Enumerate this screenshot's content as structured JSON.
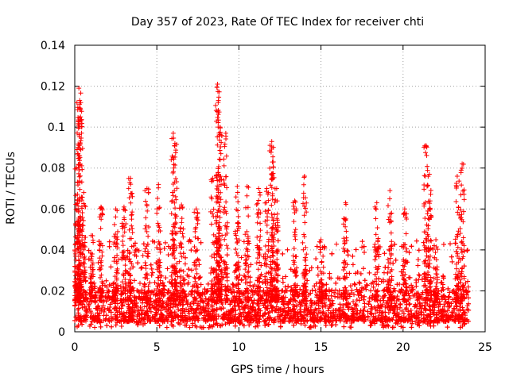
{
  "chart_data": {
    "type": "scatter",
    "title": "Day 357 of 2023, Rate Of TEC Index for receiver chti",
    "xlabel": "GPS time / hours",
    "ylabel": "ROTI / TECUs",
    "xlim": [
      0,
      25
    ],
    "ylim": [
      0,
      0.14
    ],
    "xticks": [
      0,
      5,
      10,
      15,
      20,
      25
    ],
    "yticks": [
      0,
      0.02,
      0.04,
      0.06,
      0.08,
      0.1,
      0.12,
      0.14
    ],
    "xtick_labels": [
      "0",
      "5",
      "10",
      "15",
      "20",
      "25"
    ],
    "ytick_labels": [
      "0",
      "0.02",
      "0.04",
      "0.06",
      "0.08",
      "0.1",
      "0.12",
      "0.14"
    ],
    "grid": true,
    "marker": "+",
    "color": "#ff0000",
    "series": [
      {
        "name": "ROTI",
        "x_range": [
          0,
          24
        ],
        "base_band": [
          0.005,
          0.02
        ],
        "peaks": [
          {
            "x": 0.1,
            "y": 0.08
          },
          {
            "x": 0.25,
            "y": 0.119
          },
          {
            "x": 0.3,
            "y": 0.113
          },
          {
            "x": 0.35,
            "y": 0.105
          },
          {
            "x": 0.55,
            "y": 0.068
          },
          {
            "x": 1.0,
            "y": 0.047
          },
          {
            "x": 1.6,
            "y": 0.061
          },
          {
            "x": 2.5,
            "y": 0.06
          },
          {
            "x": 3.0,
            "y": 0.061
          },
          {
            "x": 3.4,
            "y": 0.075
          },
          {
            "x": 4.4,
            "y": 0.07
          },
          {
            "x": 5.1,
            "y": 0.072
          },
          {
            "x": 6.0,
            "y": 0.097
          },
          {
            "x": 6.1,
            "y": 0.092
          },
          {
            "x": 6.5,
            "y": 0.062
          },
          {
            "x": 7.4,
            "y": 0.06
          },
          {
            "x": 8.4,
            "y": 0.075
          },
          {
            "x": 8.7,
            "y": 0.121
          },
          {
            "x": 8.75,
            "y": 0.113
          },
          {
            "x": 8.85,
            "y": 0.1
          },
          {
            "x": 9.2,
            "y": 0.097
          },
          {
            "x": 9.9,
            "y": 0.071
          },
          {
            "x": 10.5,
            "y": 0.071
          },
          {
            "x": 11.2,
            "y": 0.07
          },
          {
            "x": 11.7,
            "y": 0.07
          },
          {
            "x": 12.0,
            "y": 0.093
          },
          {
            "x": 12.1,
            "y": 0.083
          },
          {
            "x": 12.3,
            "y": 0.07
          },
          {
            "x": 13.4,
            "y": 0.064
          },
          {
            "x": 14.0,
            "y": 0.076
          },
          {
            "x": 15.0,
            "y": 0.045
          },
          {
            "x": 16.5,
            "y": 0.063
          },
          {
            "x": 18.4,
            "y": 0.063
          },
          {
            "x": 19.2,
            "y": 0.069
          },
          {
            "x": 20.1,
            "y": 0.06
          },
          {
            "x": 21.4,
            "y": 0.091
          },
          {
            "x": 21.6,
            "y": 0.077
          },
          {
            "x": 22.0,
            "y": 0.045
          },
          {
            "x": 23.3,
            "y": 0.076
          },
          {
            "x": 23.6,
            "y": 0.082
          }
        ]
      }
    ]
  }
}
